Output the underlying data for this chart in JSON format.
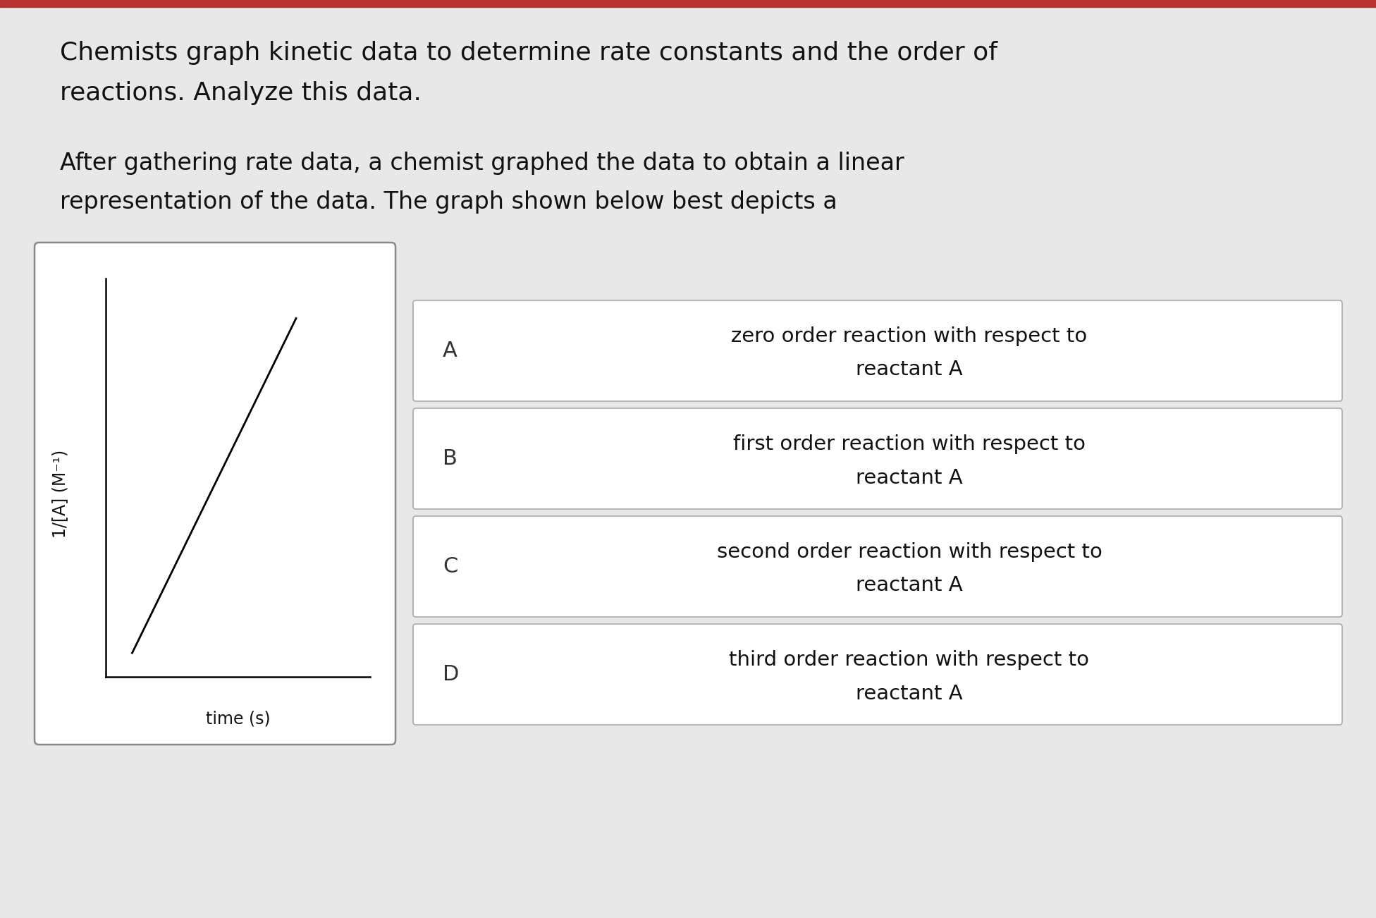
{
  "background_color": "#e8e8e8",
  "top_bar_color": "#b83232",
  "title_text1": "Chemists graph kinetic data to determine rate constants and the order of",
  "title_text2": "reactions. Analyze this data.",
  "subtitle_text1": "After gathering rate data, a chemist graphed the data to obtain a linear",
  "subtitle_text2": "representation of the data. The graph shown below best depicts a",
  "graph_xlabel": "time (s)",
  "graph_ylabel": "1/[A] (M⁻¹)",
  "choices": [
    {
      "label": "A",
      "text1": "zero order reaction with respect to",
      "text2": "reactant A"
    },
    {
      "label": "B",
      "text1": "first order reaction with respect to",
      "text2": "reactant A"
    },
    {
      "label": "C",
      "text1": "second order reaction with respect to",
      "text2": "reactant A"
    },
    {
      "label": "D",
      "text1": "third order reaction with respect to",
      "text2": "reactant A"
    }
  ],
  "font_size_title": 26,
  "font_size_body": 24,
  "font_size_ylabel": 17,
  "font_size_choice": 21,
  "font_size_label": 22
}
